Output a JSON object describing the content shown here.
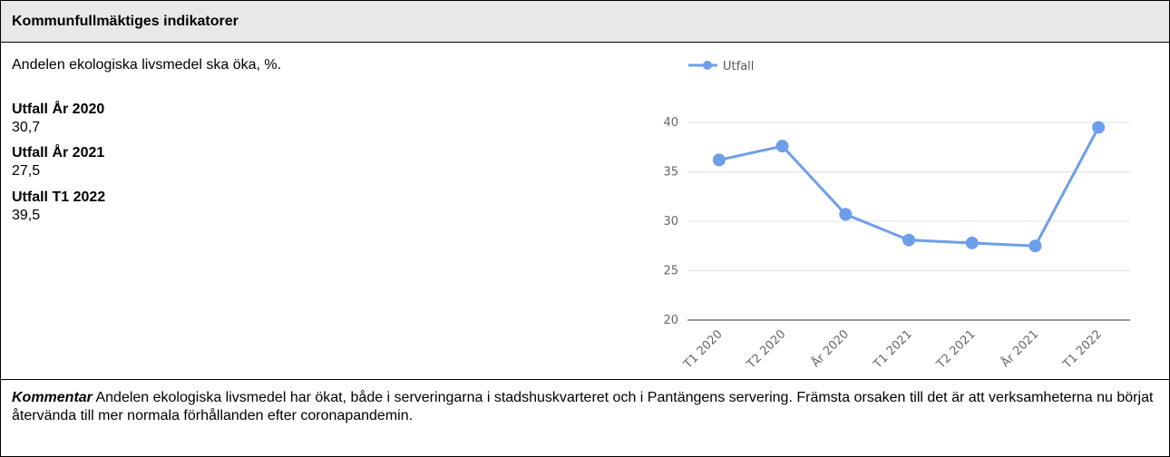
{
  "header": {
    "title": "Kommunfullmäktiges indikatorer"
  },
  "indicator": {
    "description": "Andelen ekologiska livsmedel ska öka, %.",
    "results": [
      {
        "label": "Utfall År 2020",
        "value": "30,7"
      },
      {
        "label": "Utfall År 2021",
        "value": "27,5"
      },
      {
        "label": "Utfall T1 2022",
        "value": "39,5"
      }
    ]
  },
  "chart_data": {
    "type": "line",
    "categories": [
      "T1 2020",
      "T2 2020",
      "År 2020",
      "T1 2021",
      "T2 2021",
      "År 2021",
      "T1 2022"
    ],
    "series": [
      {
        "name": "Utfall",
        "color": "#6d9eeb",
        "values": [
          36.2,
          37.6,
          30.7,
          28.1,
          27.8,
          27.5,
          39.5
        ]
      }
    ],
    "ylim": [
      20,
      40
    ],
    "yticks": [
      20,
      25,
      30,
      35,
      40
    ],
    "grid": true,
    "legend": "top"
  },
  "comment": {
    "label": "Kommentar",
    "text": "Andelen ekologiska livsmedel har ökat, både i serveringarna i stadshuskvarteret och i Pantängens servering. Främsta orsaken till det är att verksamheterna nu börjat återvända till mer normala förhållanden efter coronapandemin."
  }
}
